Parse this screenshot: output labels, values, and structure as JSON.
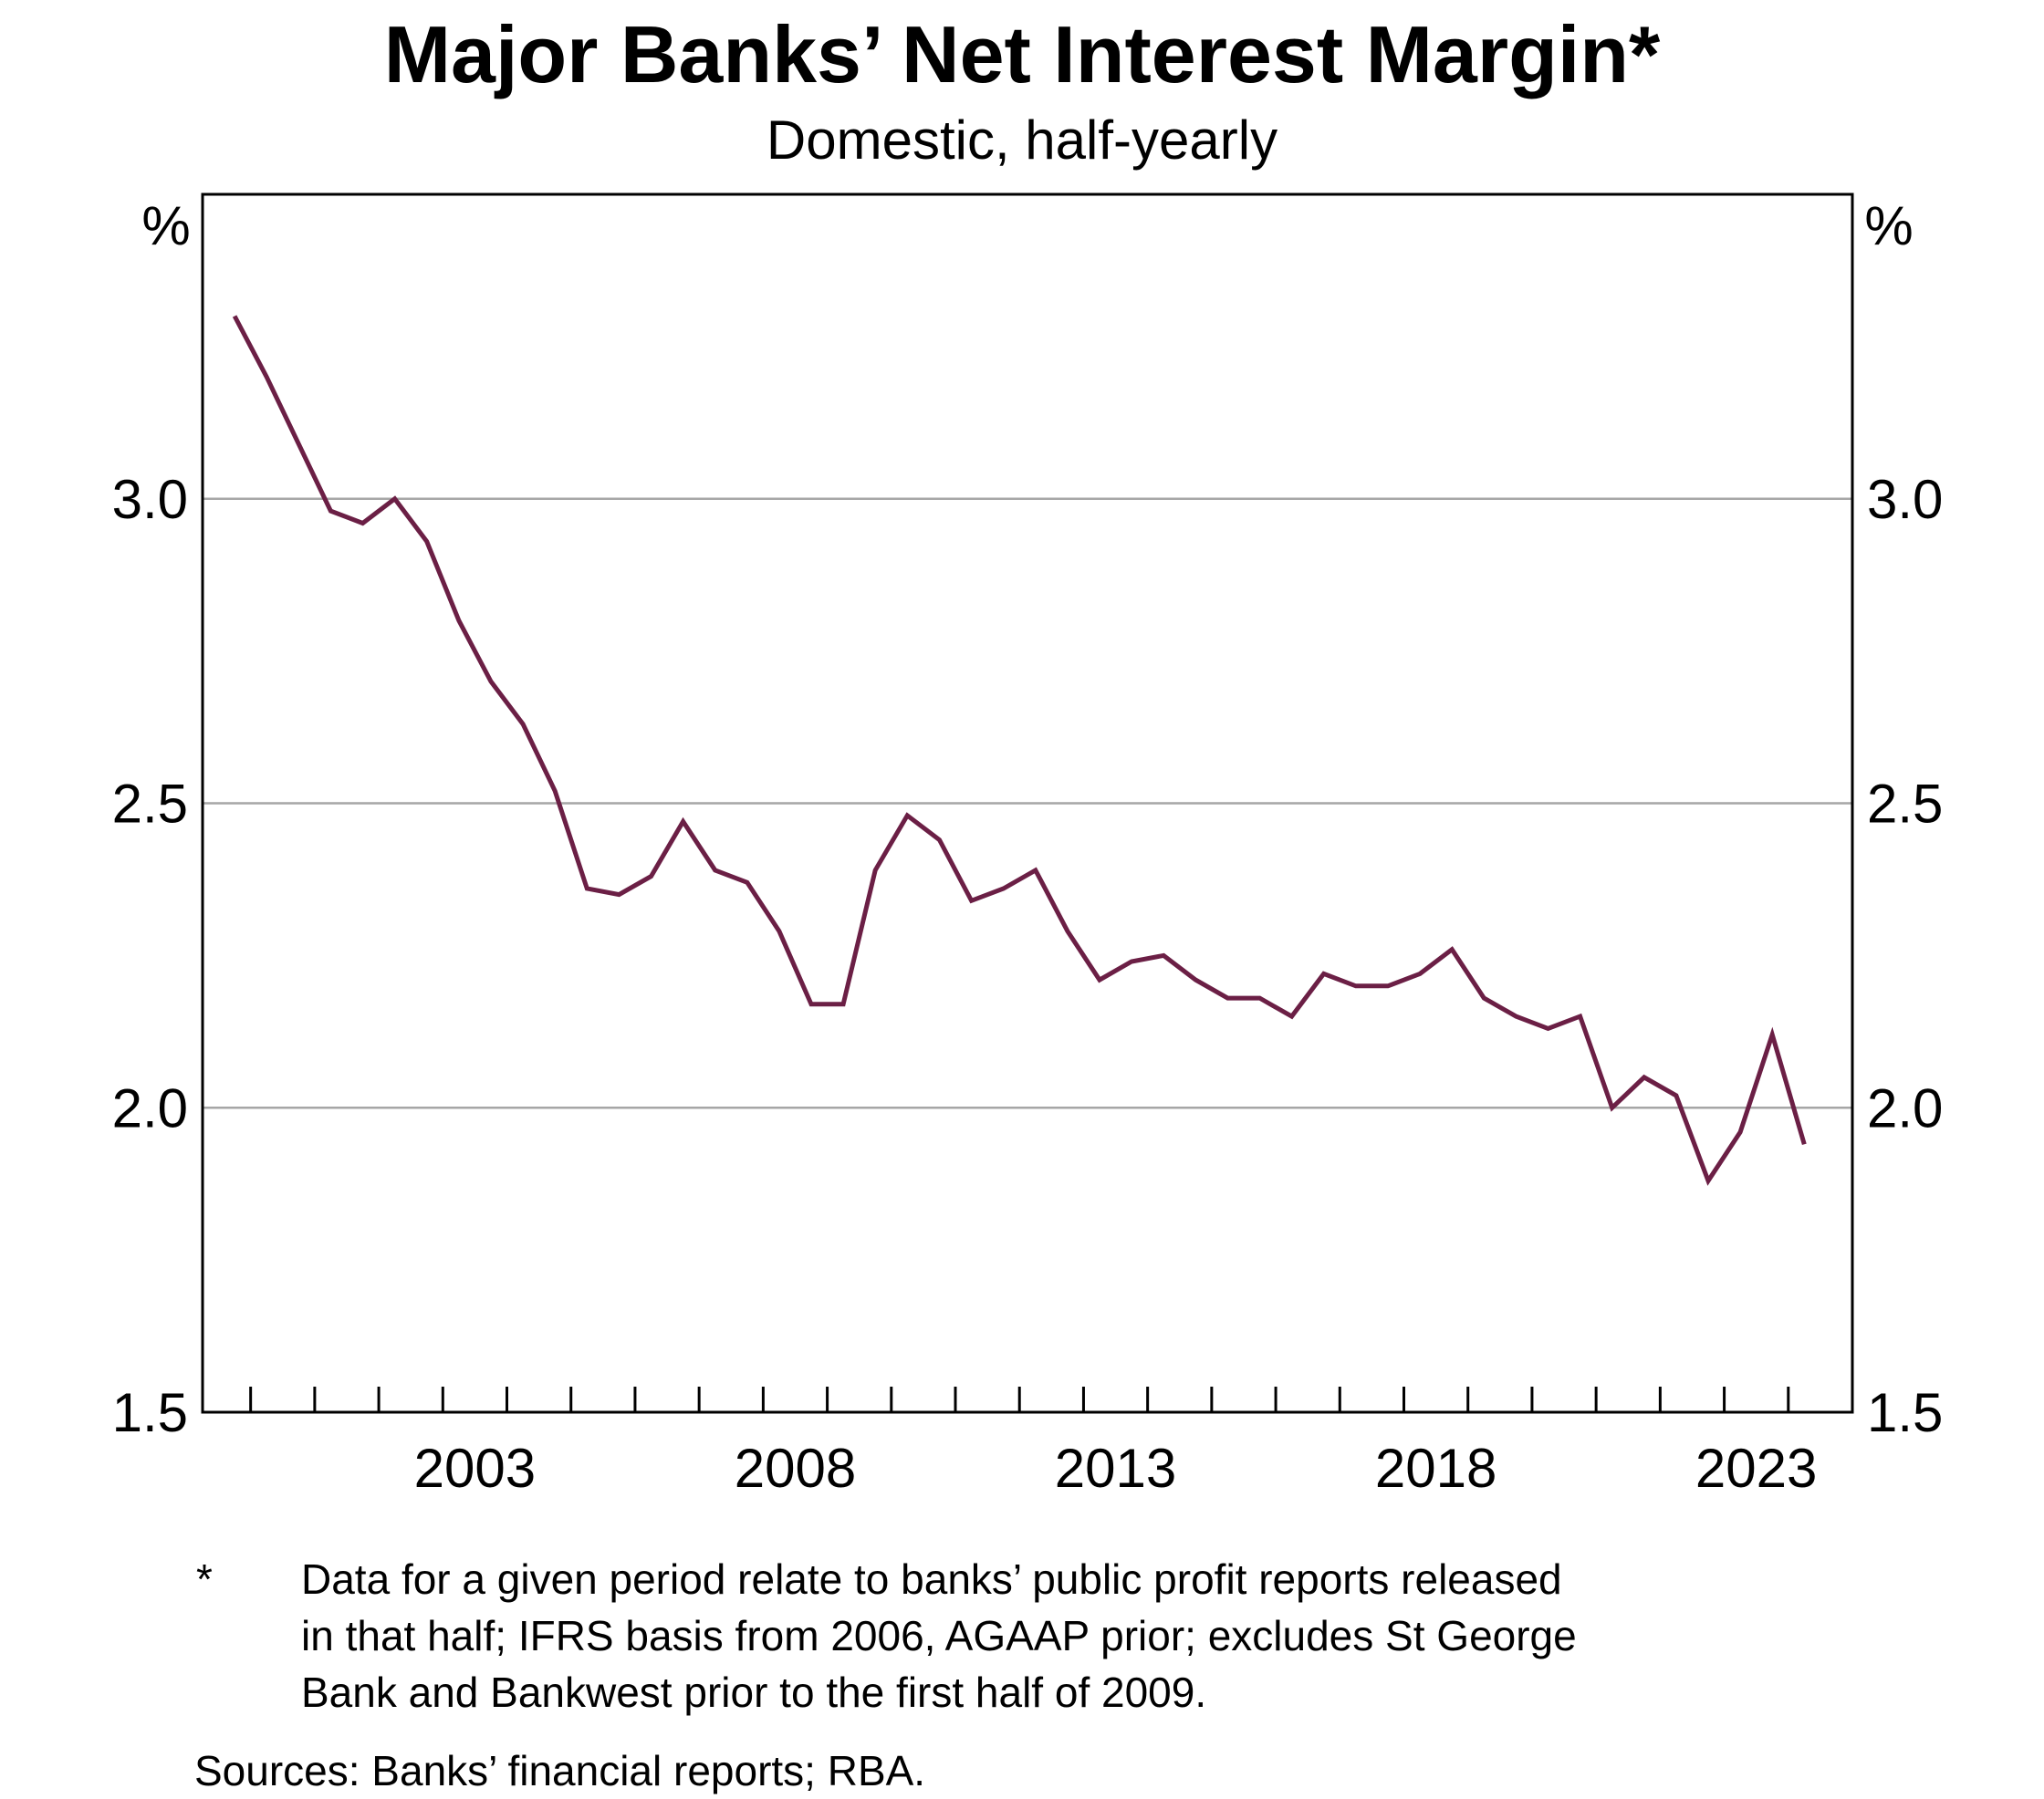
{
  "chart_data": {
    "type": "line",
    "title": "Major Banks’ Net Interest Margin*",
    "subtitle": "Domestic, half-yearly",
    "y_unit_left": "%",
    "y_unit_right": "%",
    "ylim": [
      1.5,
      3.5
    ],
    "yticks": [
      1.5,
      2.0,
      2.5,
      3.0
    ],
    "ytick_labels": [
      "1.5",
      "2.0",
      "2.5",
      "3.0"
    ],
    "xlim": [
      1998.75,
      2024.5
    ],
    "xticks": [
      1999.5,
      2000.5,
      2001.5,
      2002.5,
      2003.5,
      2004.5,
      2005.5,
      2006.5,
      2007.5,
      2008.5,
      2009.5,
      2010.5,
      2011.5,
      2012.5,
      2013.5,
      2014.5,
      2015.5,
      2016.5,
      2017.5,
      2018.5,
      2019.5,
      2020.5,
      2021.5,
      2022.5,
      2023.5
    ],
    "xtick_labels": [
      {
        "year": 2003,
        "label": "2003"
      },
      {
        "year": 2008,
        "label": "2008"
      },
      {
        "year": 2013,
        "label": "2013"
      },
      {
        "year": 2018,
        "label": "2018"
      },
      {
        "year": 2023,
        "label": "2023"
      }
    ],
    "grid": true,
    "line_color": "#6b1f45",
    "grid_color": "#a6a6a6",
    "series": [
      {
        "x": [
          1999.25,
          1999.75,
          2000.25,
          2000.75,
          2001.25,
          2001.75,
          2002.25,
          2002.75,
          2003.25,
          2003.75,
          2004.25,
          2004.75,
          2005.25,
          2005.75,
          2006.25,
          2006.75,
          2007.25,
          2007.75,
          2008.25,
          2008.75,
          2009.25,
          2009.75,
          2010.25,
          2010.75,
          2011.25,
          2011.75,
          2012.25,
          2012.75,
          2013.25,
          2013.75,
          2014.25,
          2014.75,
          2015.25,
          2015.75,
          2016.25,
          2016.75,
          2017.25,
          2017.75,
          2018.25,
          2018.75,
          2019.25,
          2019.75,
          2020.25,
          2020.75,
          2021.25,
          2021.75,
          2022.25,
          2022.75,
          2023.25,
          2023.75
        ],
        "values": [
          3.3,
          3.2,
          3.09,
          2.98,
          2.96,
          3.0,
          2.93,
          2.8,
          2.7,
          2.63,
          2.52,
          2.36,
          2.35,
          2.38,
          2.47,
          2.39,
          2.37,
          2.29,
          2.17,
          2.17,
          2.39,
          2.48,
          2.44,
          2.34,
          2.36,
          2.39,
          2.29,
          2.21,
          2.24,
          2.25,
          2.21,
          2.18,
          2.18,
          2.15,
          2.22,
          2.2,
          2.2,
          2.22,
          2.26,
          2.18,
          2.15,
          2.13,
          2.15,
          2.0,
          2.05,
          2.02,
          1.88,
          1.96,
          2.12,
          1.94
        ]
      }
    ]
  },
  "footnote": {
    "marker": "*",
    "lines": [
      "Data for a given period relate to banks’ public profit reports released",
      "in that half; IFRS basis from 2006, AGAAP prior; excludes St George",
      "Bank and Bankwest prior to the first half of 2009."
    ]
  },
  "sources": "Sources: Banks’ financial reports; RBA."
}
